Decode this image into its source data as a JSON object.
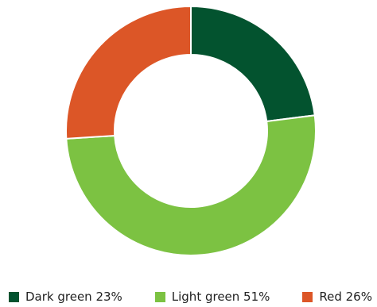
{
  "chart_data": {
    "type": "pie",
    "donut": true,
    "legend_position": "bottom",
    "categories": [
      "Dark green",
      "Light green",
      "Red"
    ],
    "values": [
      23,
      51,
      26
    ],
    "colors": [
      "#03532f",
      "#7cc242",
      "#dc5627"
    ],
    "legend_labels": [
      "Dark green 23%",
      "Light green 51%",
      "Red 26%"
    ]
  }
}
